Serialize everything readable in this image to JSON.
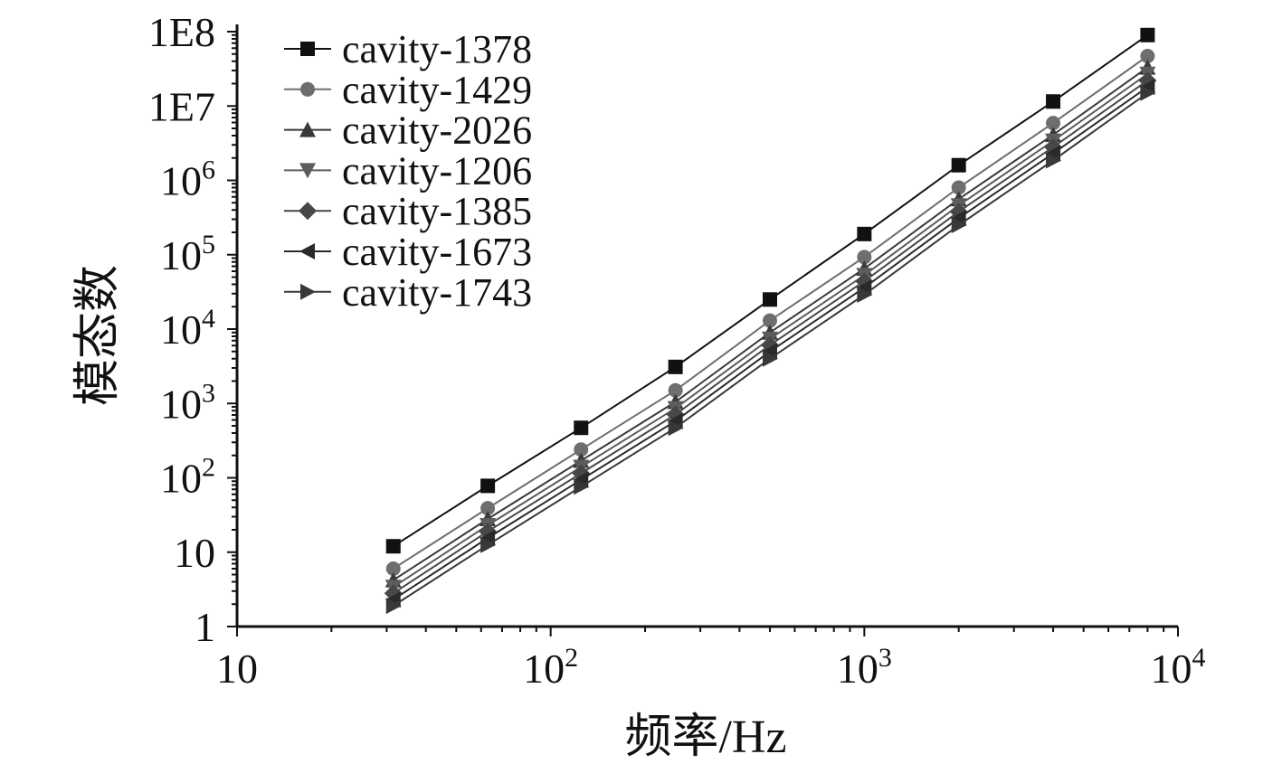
{
  "chart_data": {
    "type": "line",
    "xlabel": "频率/Hz",
    "ylabel": "模态数",
    "x_scale": "log",
    "y_scale": "log",
    "xlim": [
      10,
      10000
    ],
    "ylim": [
      1,
      100000000
    ],
    "grid": false,
    "legend_position": "top-left",
    "x_ticks": [
      {
        "value": 10,
        "base": "10",
        "exp": ""
      },
      {
        "value": 100,
        "base": "10",
        "exp": "2"
      },
      {
        "value": 1000,
        "base": "10",
        "exp": "3"
      },
      {
        "value": 10000,
        "base": "10",
        "exp": "4"
      }
    ],
    "y_ticks": [
      {
        "value": 1,
        "base": "1",
        "exp": ""
      },
      {
        "value": 10,
        "base": "10",
        "exp": ""
      },
      {
        "value": 100,
        "base": "10",
        "exp": "2"
      },
      {
        "value": 1000,
        "base": "10",
        "exp": "3"
      },
      {
        "value": 10000,
        "base": "10",
        "exp": "4"
      },
      {
        "value": 100000,
        "base": "10",
        "exp": "5"
      },
      {
        "value": 1000000,
        "base": "10",
        "exp": "6"
      },
      {
        "value": 10000000,
        "base": "1E7",
        "exp": ""
      },
      {
        "value": 100000000,
        "base": "1E8",
        "exp": ""
      }
    ],
    "x": [
      31.5,
      63,
      125,
      250,
      500,
      1000,
      2000,
      4000,
      8000
    ],
    "series": [
      {
        "name": "cavity-1378",
        "marker": "square",
        "color": "#111111",
        "values": [
          12,
          78,
          470,
          3100,
          25000,
          190000,
          1600000,
          11500000,
          90000000
        ]
      },
      {
        "name": "cavity-1429",
        "marker": "circle",
        "color": "#6e6e6e",
        "values": [
          6,
          39,
          240,
          1500,
          13000,
          93000,
          800000,
          5900000,
          47000000
        ]
      },
      {
        "name": "cavity-2026",
        "marker": "triangle-up",
        "color": "#3a3a3a",
        "values": [
          4.2,
          28,
          170,
          1050,
          9000,
          65000,
          560000,
          4100000,
          33000000
        ]
      },
      {
        "name": "cavity-1206",
        "marker": "triangle-down",
        "color": "#5c5c5c",
        "values": [
          3.4,
          23,
          140,
          860,
          7400,
          53000,
          460000,
          3400000,
          27000000
        ]
      },
      {
        "name": "cavity-1385",
        "marker": "diamond",
        "color": "#474747",
        "values": [
          2.8,
          19,
          115,
          710,
          6100,
          44000,
          380000,
          2800000,
          22000000
        ]
      },
      {
        "name": "cavity-1673",
        "marker": "triangle-left",
        "color": "#2a2a2a",
        "values": [
          2.3,
          15.5,
          94,
          580,
          5000,
          36000,
          310000,
          2300000,
          18000000
        ]
      },
      {
        "name": "cavity-1743",
        "marker": "triangle-right",
        "color": "#383838",
        "values": [
          1.9,
          12.5,
          76,
          470,
          4000,
          29000,
          250000,
          1850000,
          15000000
        ]
      }
    ]
  }
}
